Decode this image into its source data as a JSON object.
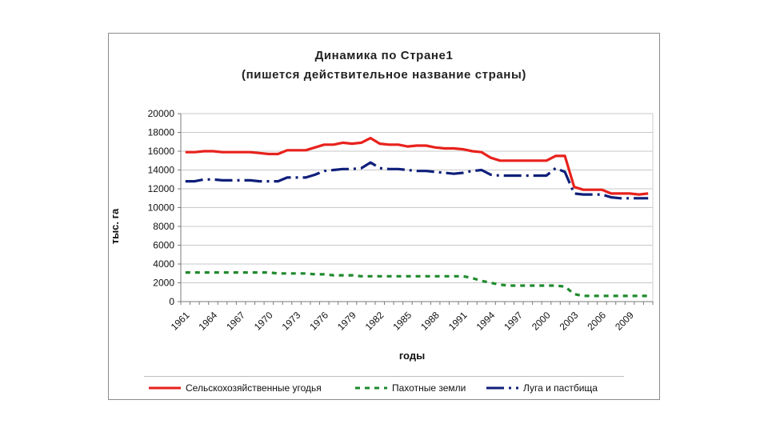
{
  "chart_data": {
    "type": "line",
    "title": "Динамика по Стране1",
    "subtitle": "(пишется действительное название страны)",
    "xlabel": "годы",
    "ylabel": "тыс. га",
    "ylim": [
      0,
      20000
    ],
    "yticks": [
      0,
      2000,
      4000,
      6000,
      8000,
      10000,
      12000,
      14000,
      16000,
      18000,
      20000
    ],
    "ytick_labels": [
      "0",
      "2000",
      "4000",
      "6000",
      "8000",
      "10000",
      "12000",
      "14000",
      "16000",
      "18000",
      "20000"
    ],
    "xtick_labels": [
      "1961",
      "1964",
      "1967",
      "1970",
      "1973",
      "1976",
      "1979",
      "1982",
      "1985",
      "1988",
      "1991",
      "1994",
      "1997",
      "2000",
      "2003",
      "2006",
      "2009"
    ],
    "x": [
      1961,
      1962,
      1963,
      1964,
      1965,
      1966,
      1967,
      1968,
      1969,
      1970,
      1971,
      1972,
      1973,
      1974,
      1975,
      1976,
      1977,
      1978,
      1979,
      1980,
      1981,
      1982,
      1983,
      1984,
      1985,
      1986,
      1987,
      1988,
      1989,
      1990,
      1991,
      1992,
      1993,
      1994,
      1995,
      1996,
      1997,
      1998,
      1999,
      2000,
      2001,
      2002,
      2003,
      2004,
      2005,
      2006,
      2007,
      2008,
      2009,
      2010,
      2011
    ],
    "grid": "horizontal",
    "legend_position": "bottom",
    "series": [
      {
        "name": "Сельскохозяйственные угодья",
        "color": "#e8211c",
        "style": "solid",
        "values": [
          15900,
          15900,
          16000,
          16000,
          15900,
          15900,
          15900,
          15900,
          15800,
          15700,
          15700,
          16100,
          16100,
          16100,
          16400,
          16700,
          16700,
          16900,
          16800,
          16900,
          17400,
          16800,
          16700,
          16700,
          16500,
          16600,
          16600,
          16400,
          16300,
          16300,
          16200,
          16000,
          15900,
          15300,
          15000,
          15000,
          15000,
          15000,
          15000,
          15000,
          15500,
          15500,
          12200,
          11900,
          11900,
          11900,
          11500,
          11500,
          11500,
          11400,
          11500
        ]
      },
      {
        "name": "Пахотные земли",
        "color": "#1f8a2d",
        "style": "dashed",
        "values": [
          3100,
          3100,
          3100,
          3100,
          3100,
          3100,
          3100,
          3100,
          3100,
          3100,
          3000,
          3000,
          3000,
          3000,
          2900,
          2900,
          2800,
          2800,
          2800,
          2700,
          2700,
          2700,
          2700,
          2700,
          2700,
          2700,
          2700,
          2700,
          2700,
          2700,
          2700,
          2500,
          2200,
          2000,
          1800,
          1700,
          1700,
          1700,
          1700,
          1700,
          1700,
          1600,
          800,
          600,
          600,
          600,
          600,
          600,
          600,
          600,
          600
        ]
      },
      {
        "name": "Луга и пастбища",
        "color": "#0f1f7a",
        "style": "dash-dot",
        "values": [
          12800,
          12800,
          13000,
          13000,
          12900,
          12900,
          12900,
          12900,
          12800,
          12800,
          12800,
          13200,
          13200,
          13200,
          13500,
          13900,
          14000,
          14100,
          14100,
          14200,
          14800,
          14200,
          14100,
          14100,
          14000,
          13900,
          13900,
          13800,
          13700,
          13600,
          13700,
          13900,
          14000,
          13500,
          13400,
          13400,
          13400,
          13400,
          13400,
          13400,
          14200,
          13800,
          11500,
          11400,
          11400,
          11400,
          11100,
          11000,
          11000,
          11000,
          11000
        ]
      }
    ]
  }
}
